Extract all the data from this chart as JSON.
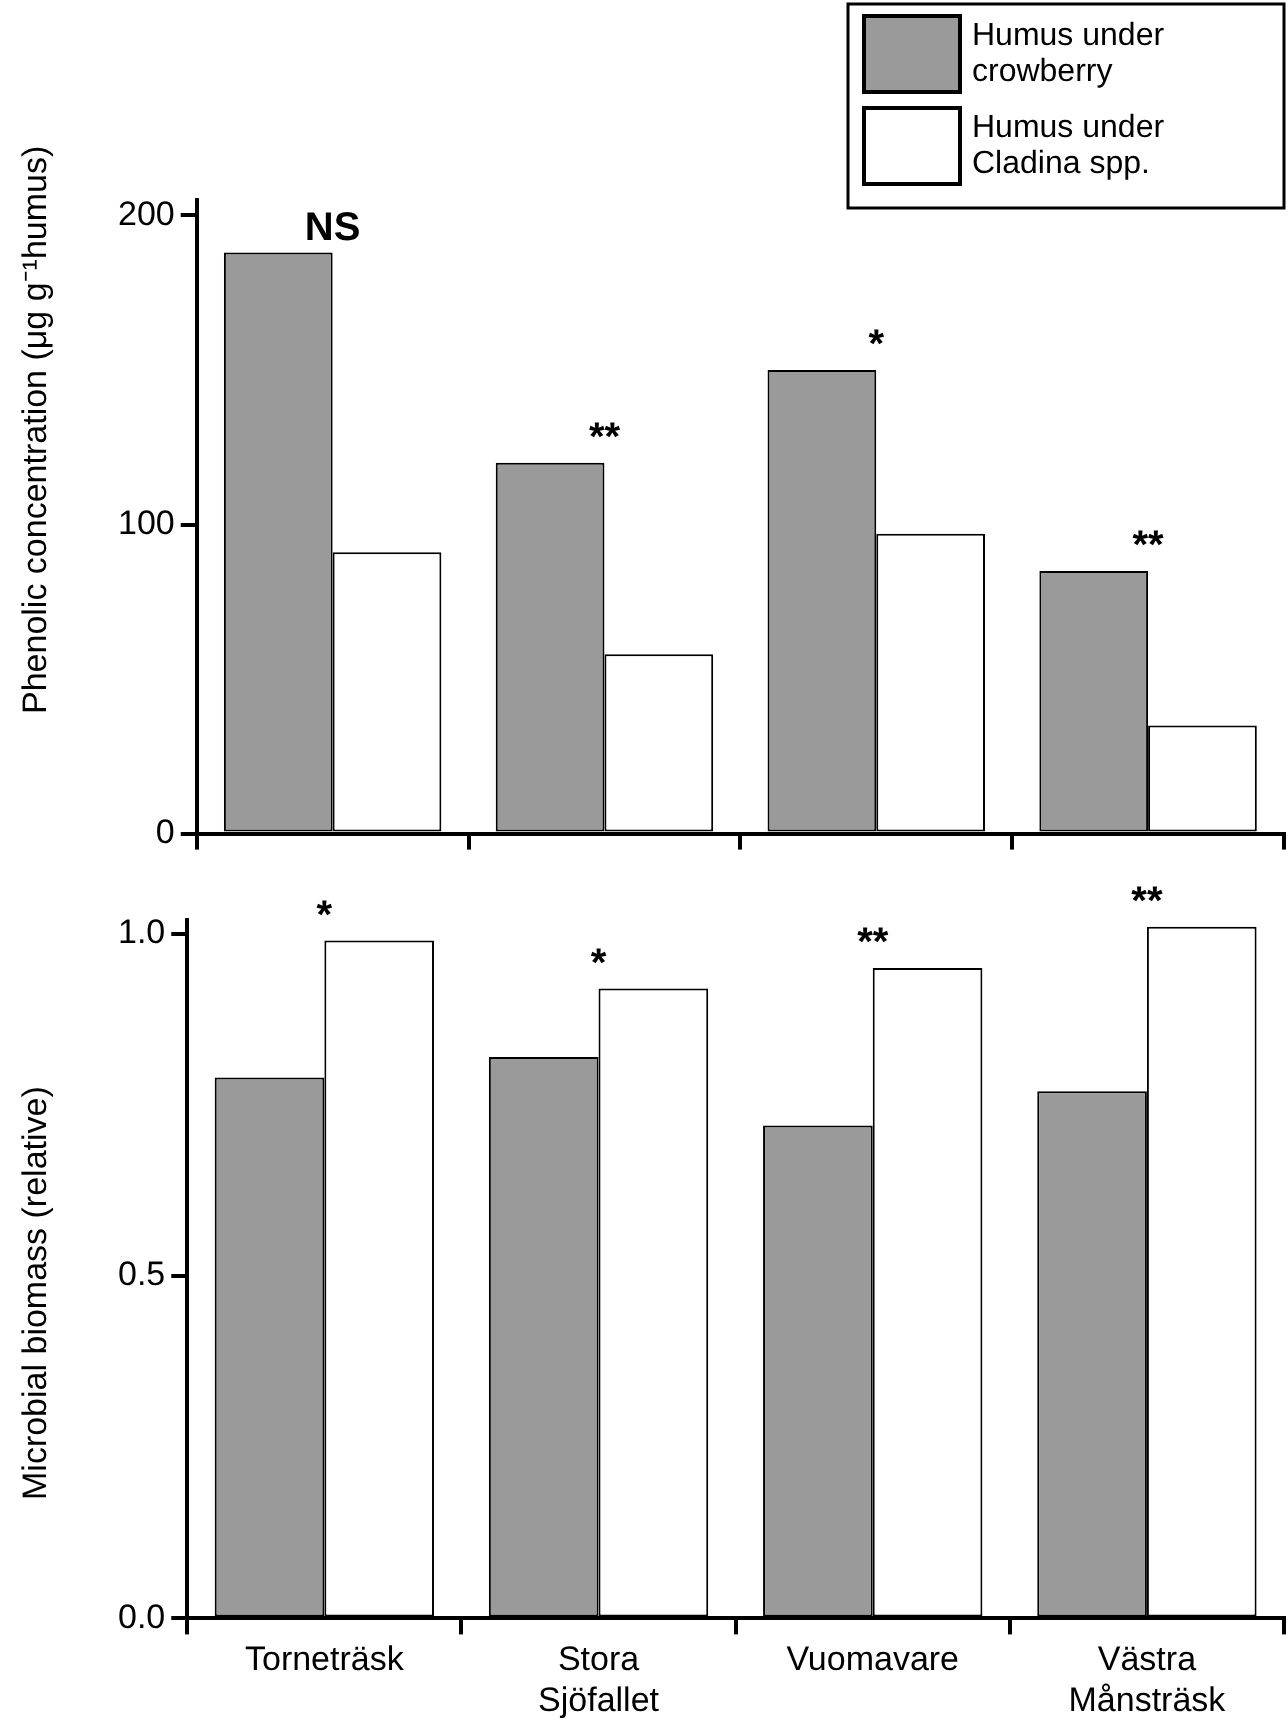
{
  "chart_data": [
    {
      "type": "bar",
      "ylabel": "Phenolic concentration (μg g⁻¹humus)",
      "categories": [
        "Torneträsk",
        "Stora Sjöfallet",
        "Vuomavare",
        "Västra Månsträsk"
      ],
      "tick_labels": "y",
      "series": [
        {
          "name": "Humus under crowberry",
          "color": "#9a9a9a",
          "values": [
            188,
            120,
            150,
            85
          ]
        },
        {
          "name": "Humus under Cladina spp.",
          "color": "#ffffff",
          "values": [
            91,
            58,
            97,
            35
          ]
        }
      ],
      "ylim": [
        0,
        205
      ],
      "yticks": [
        0,
        100,
        200
      ],
      "grid": false,
      "legend": "top right",
      "annotations": [
        {
          "text": "NS",
          "x": "Torneträsk",
          "y": 188
        },
        {
          "text": "**",
          "x": "Stora Sjöfallet",
          "y": 120
        },
        {
          "text": "*",
          "x": "Vuomavare",
          "y": 150
        },
        {
          "text": "**",
          "x": "Västra Månsträsk",
          "y": 85
        }
      ]
    },
    {
      "type": "bar",
      "ylabel": "Microbial biomass (relative)",
      "categories": [
        "Torneträsk",
        "Stora Sjöfallet",
        "Vuomavare",
        "Västra Månsträsk"
      ],
      "series": [
        {
          "color": "#9a9a9a",
          "values": [
            0.79,
            0.82,
            0.72,
            0.77
          ]
        },
        {
          "color": "#ffffff",
          "values": [
            0.99,
            0.92,
            0.95,
            1.01
          ]
        }
      ],
      "ylim": [
        0,
        1.02
      ],
      "yticks": [
        {
          "value": 0,
          "label": "0.0"
        },
        0.5,
        {
          "value": 1,
          "label": "1.0"
        }
      ],
      "grid": false,
      "annotations": [
        {
          "text": "*",
          "x": "Torneträsk",
          "y": 0.99
        },
        {
          "text": "*",
          "x": "Stora Sjöfallet",
          "y": 0.92
        },
        {
          "text": "**",
          "x": "Vuomavare",
          "y": 0.95
        },
        {
          "text": "**",
          "x": "Västra Månsträsk",
          "y": 1.01
        }
      ]
    }
  ]
}
